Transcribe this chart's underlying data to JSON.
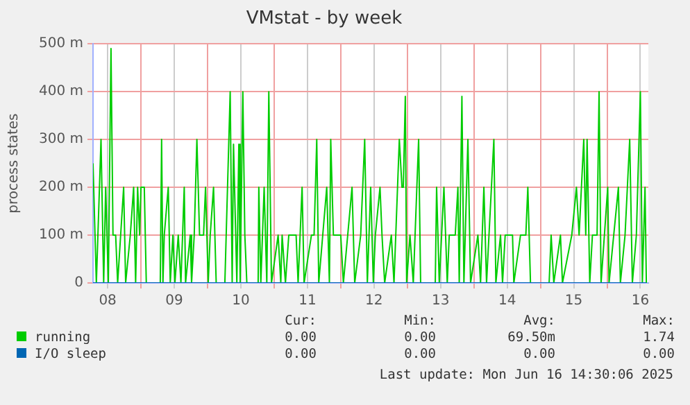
{
  "chart_data": {
    "type": "line",
    "title": "VMstat - by week",
    "ylabel": "process states",
    "xlim": [
      8.28,
      16.62
    ],
    "xticks": [
      {
        "value": 8.5,
        "label": "08"
      },
      {
        "value": 9,
        "label": null
      },
      {
        "value": 9.5,
        "label": "09"
      },
      {
        "value": 10,
        "label": null
      },
      {
        "value": 10.5,
        "label": "10"
      },
      {
        "value": 11,
        "label": null
      },
      {
        "value": 11.5,
        "label": "11"
      },
      {
        "value": 12,
        "label": null
      },
      {
        "value": 12.5,
        "label": "12"
      },
      {
        "value": 13,
        "label": null
      },
      {
        "value": 13.5,
        "label": "13"
      },
      {
        "value": 14,
        "label": null
      },
      {
        "value": 14.5,
        "label": "14"
      },
      {
        "value": 15,
        "label": null
      },
      {
        "value": 15.5,
        "label": "15"
      },
      {
        "value": 16,
        "label": null
      },
      {
        "value": 16.5,
        "label": "16"
      }
    ],
    "ylim": [
      0,
      500
    ],
    "yticks": [
      0,
      {
        "value": 100,
        "label": "100 m"
      },
      {
        "value": 200,
        "label": "200 m"
      },
      {
        "value": 300,
        "label": "300 m"
      },
      {
        "value": 400,
        "label": "400 m"
      },
      {
        "value": 500,
        "label": "500 m"
      }
    ],
    "grid": true,
    "legend": "bottom",
    "marker": "none",
    "line_style": "solid",
    "series": [
      {
        "name": "running",
        "color": "#00cc00",
        "x": [
          8.28,
          8.33,
          8.4,
          8.44,
          8.47,
          8.51,
          8.55,
          8.58,
          8.62,
          8.65,
          8.74,
          8.77,
          8.84,
          8.89,
          8.92,
          8.95,
          8.98,
          9.0,
          9.05,
          9.08,
          9.29,
          9.31,
          9.33,
          9.35,
          9.41,
          9.44,
          9.48,
          9.51,
          9.56,
          9.6,
          9.65,
          9.67,
          9.74,
          9.76,
          9.8,
          9.84,
          9.88,
          9.94,
          9.97,
          10.01,
          10.04,
          10.09,
          10.13,
          10.26,
          10.28,
          10.34,
          10.37,
          10.39,
          10.44,
          10.47,
          10.49,
          10.53,
          10.56,
          10.59,
          10.76,
          10.77,
          10.8,
          10.85,
          10.89,
          10.92,
          10.96,
          11.06,
          11.1,
          11.12,
          11.17,
          11.22,
          11.26,
          11.33,
          11.36,
          11.42,
          11.45,
          11.56,
          11.6,
          11.64,
          11.67,
          11.79,
          11.83,
          11.85,
          11.89,
          11.97,
          12.0,
          12.04,
          12.17,
          12.21,
          12.3,
          12.36,
          12.4,
          12.45,
          12.49,
          12.52,
          12.59,
          12.62,
          12.66,
          12.76,
          12.8,
          12.88,
          12.92,
          12.94,
          12.97,
          12.99,
          13.04,
          13.09,
          13.17,
          13.2,
          13.42,
          13.44,
          13.48,
          13.55,
          13.6,
          13.63,
          13.72,
          13.76,
          13.78,
          13.82,
          13.85,
          13.91,
          13.95,
          14.06,
          14.1,
          14.15,
          14.19,
          14.3,
          14.33,
          14.4,
          14.43,
          14.47,
          14.58,
          14.6,
          14.7,
          14.78,
          14.81,
          14.85,
          15.13,
          15.16,
          15.2,
          15.3,
          15.33,
          15.47,
          15.54,
          15.58,
          15.65,
          15.68,
          15.7,
          15.74,
          15.78,
          15.85,
          15.88,
          15.91,
          16.01,
          16.03,
          16.1,
          16.17,
          16.2,
          16.27,
          16.34,
          16.38,
          16.44,
          16.5,
          16.53,
          16.57,
          16.59
        ],
        "values": [
          250,
          0,
          300,
          0,
          200,
          0,
          490,
          100,
          100,
          0,
          200,
          0,
          100,
          200,
          0,
          200,
          100,
          200,
          200,
          0,
          0,
          300,
          0,
          100,
          200,
          0,
          100,
          0,
          100,
          0,
          200,
          0,
          100,
          0,
          100,
          300,
          100,
          100,
          200,
          0,
          100,
          200,
          0,
          0,
          100,
          400,
          0,
          290,
          0,
          290,
          0,
          400,
          100,
          0,
          0,
          200,
          0,
          200,
          0,
          400,
          0,
          100,
          0,
          100,
          0,
          100,
          100,
          100,
          0,
          200,
          0,
          100,
          100,
          300,
          0,
          200,
          0,
          300,
          100,
          100,
          100,
          0,
          200,
          0,
          100,
          300,
          0,
          200,
          0,
          100,
          200,
          100,
          0,
          100,
          0,
          300,
          200,
          200,
          390,
          0,
          100,
          0,
          300,
          0,
          0,
          200,
          0,
          200,
          0,
          100,
          100,
          200,
          0,
          390,
          0,
          300,
          0,
          100,
          0,
          200,
          0,
          300,
          0,
          100,
          0,
          100,
          100,
          0,
          100,
          100,
          200,
          0,
          0,
          100,
          0,
          100,
          0,
          100,
          200,
          100,
          300,
          100,
          300,
          0,
          100,
          100,
          400,
          0,
          200,
          0,
          100,
          200,
          0,
          100,
          300,
          0,
          100,
          400,
          0,
          200,
          0
        ]
      },
      {
        "name": "I/O sleep",
        "color": "#0066b3",
        "x": [
          8.28,
          16.59
        ],
        "values": [
          0,
          0
        ]
      }
    ],
    "annotations": [
      "Cur:",
      "Min:",
      "Avg:",
      "Max:",
      "0.00",
      "0.00",
      "69.50m",
      "1.74",
      "0.00",
      "0.00",
      "0.00",
      "0.00",
      "Last update: Mon Jun 16 14:30:06 2025"
    ]
  }
}
